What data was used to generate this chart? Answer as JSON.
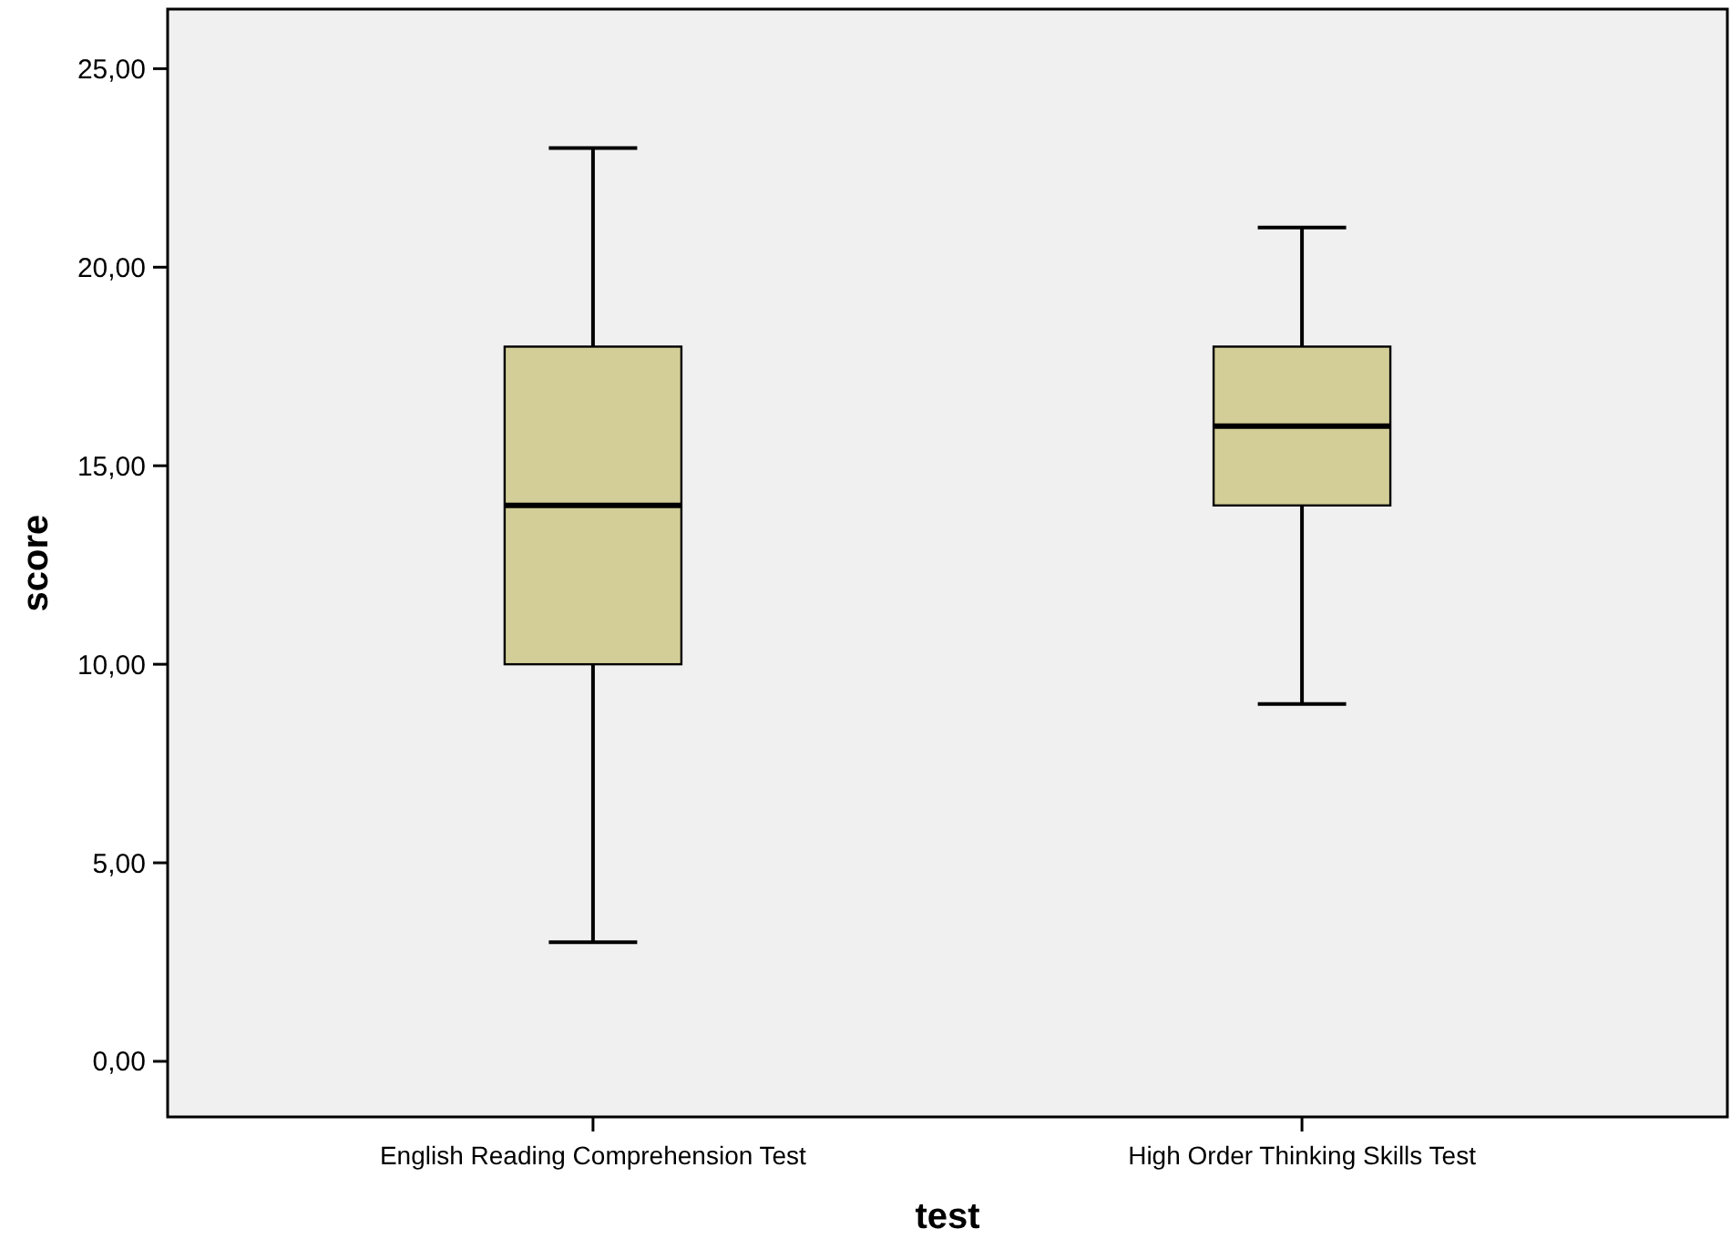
{
  "chart_data": {
    "type": "box",
    "xlabel": "test",
    "ylabel": "score",
    "categories": [
      "English Reading Comprehension Test",
      "High Order Thinking Skills Test"
    ],
    "boxes": [
      {
        "low": 3,
        "q1": 10,
        "median": 14,
        "q3": 18,
        "high": 23
      },
      {
        "low": 9,
        "q1": 14,
        "median": 16,
        "q3": 18,
        "high": 21
      }
    ],
    "color": "#d3ce97",
    "ylim": [
      -1.4,
      26.5
    ],
    "yticks": [
      {
        "value": 0,
        "label": "0,00"
      },
      {
        "value": 5,
        "label": "5,00"
      },
      {
        "value": 10,
        "label": "10,00"
      },
      {
        "value": 15,
        "label": "15,00"
      },
      {
        "value": 20,
        "label": "20,00"
      },
      {
        "value": 25,
        "label": "25,00"
      }
    ],
    "grid": false
  }
}
